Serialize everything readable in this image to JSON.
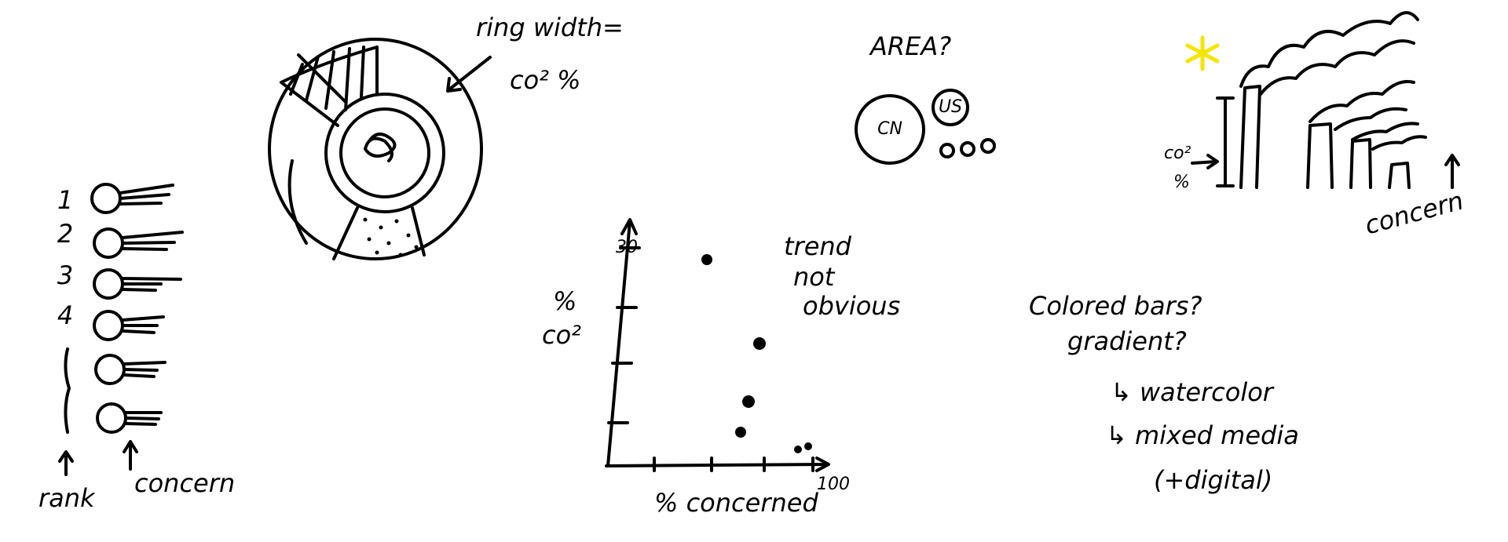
{
  "sketches": {
    "rank_list": {
      "ranks": [
        "1",
        "2",
        "3",
        "4"
      ],
      "labels": [
        "rank",
        "concern"
      ]
    },
    "ring_chart": {
      "note": [
        "ring width=",
        "co² %"
      ]
    },
    "area_circles": {
      "title": "AREA?",
      "circles": [
        "CN",
        "US"
      ]
    },
    "scatter": {
      "y_label": [
        "%",
        "co²"
      ],
      "y_max": "30",
      "x_max": "100",
      "x_label": "% concerned",
      "note": [
        "trend",
        "not",
        "obvious"
      ]
    },
    "smokestacks": {
      "y_label": [
        "co²",
        "%"
      ],
      "x_label": "concern"
    },
    "ideas": [
      "Colored bars?",
      "gradient?",
      "↳ watercolor",
      "↳ mixed media",
      "(+digital)"
    ]
  }
}
